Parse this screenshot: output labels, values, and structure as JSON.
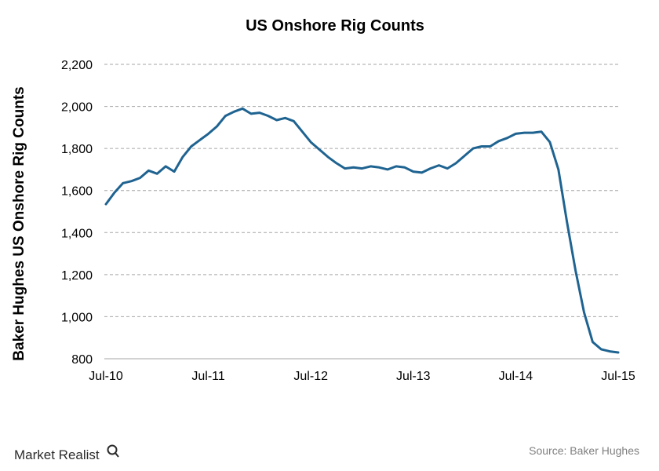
{
  "chart_data": {
    "type": "line",
    "title": "US Onshore  Rig Counts",
    "xlabel": "",
    "ylabel": "Baker Hughes US Onshore Rig Counts",
    "ylim": [
      800,
      2200
    ],
    "y_ticks": [
      800,
      1000,
      1200,
      1400,
      1600,
      1800,
      2000,
      2200
    ],
    "y_tick_labels": [
      "800",
      "1,000",
      "1,200",
      "1,400",
      "1,600",
      "1,800",
      "2,000",
      "2,200"
    ],
    "x_tick_labels": [
      "Jul-10",
      "Jul-11",
      "Jul-12",
      "Jul-13",
      "Jul-14",
      "Jul-15"
    ],
    "grid": true,
    "line_color": "#1f6391",
    "series": [
      {
        "x": [
          "2010-07",
          "2010-08",
          "2010-09",
          "2010-10",
          "2010-11",
          "2010-12",
          "2011-01",
          "2011-02",
          "2011-03",
          "2011-04",
          "2011-05",
          "2011-06",
          "2011-07",
          "2011-08",
          "2011-09",
          "2011-10",
          "2011-11",
          "2011-12",
          "2012-01",
          "2012-02",
          "2012-03",
          "2012-04",
          "2012-05",
          "2012-06",
          "2012-07",
          "2012-08",
          "2012-09",
          "2012-10",
          "2012-11",
          "2012-12",
          "2013-01",
          "2013-02",
          "2013-03",
          "2013-04",
          "2013-05",
          "2013-06",
          "2013-07",
          "2013-08",
          "2013-09",
          "2013-10",
          "2013-11",
          "2013-12",
          "2014-01",
          "2014-02",
          "2014-03",
          "2014-04",
          "2014-05",
          "2014-06",
          "2014-07",
          "2014-08",
          "2014-09",
          "2014-10",
          "2014-11",
          "2014-12",
          "2015-01",
          "2015-02",
          "2015-03",
          "2015-04",
          "2015-05",
          "2015-06",
          "2015-07"
        ],
        "values": [
          1535,
          1590,
          1635,
          1645,
          1660,
          1695,
          1680,
          1715,
          1690,
          1760,
          1810,
          1840,
          1870,
          1905,
          1955,
          1975,
          1990,
          1965,
          1970,
          1955,
          1935,
          1945,
          1930,
          1880,
          1830,
          1795,
          1760,
          1730,
          1705,
          1710,
          1705,
          1715,
          1710,
          1700,
          1715,
          1710,
          1690,
          1685,
          1705,
          1720,
          1705,
          1730,
          1765,
          1800,
          1810,
          1810,
          1835,
          1850,
          1870,
          1875,
          1875,
          1880,
          1830,
          1700,
          1450,
          1220,
          1020,
          880,
          845,
          835,
          830
        ]
      }
    ],
    "source": "Source: Baker Hughes",
    "brand": "Market Realist"
  }
}
